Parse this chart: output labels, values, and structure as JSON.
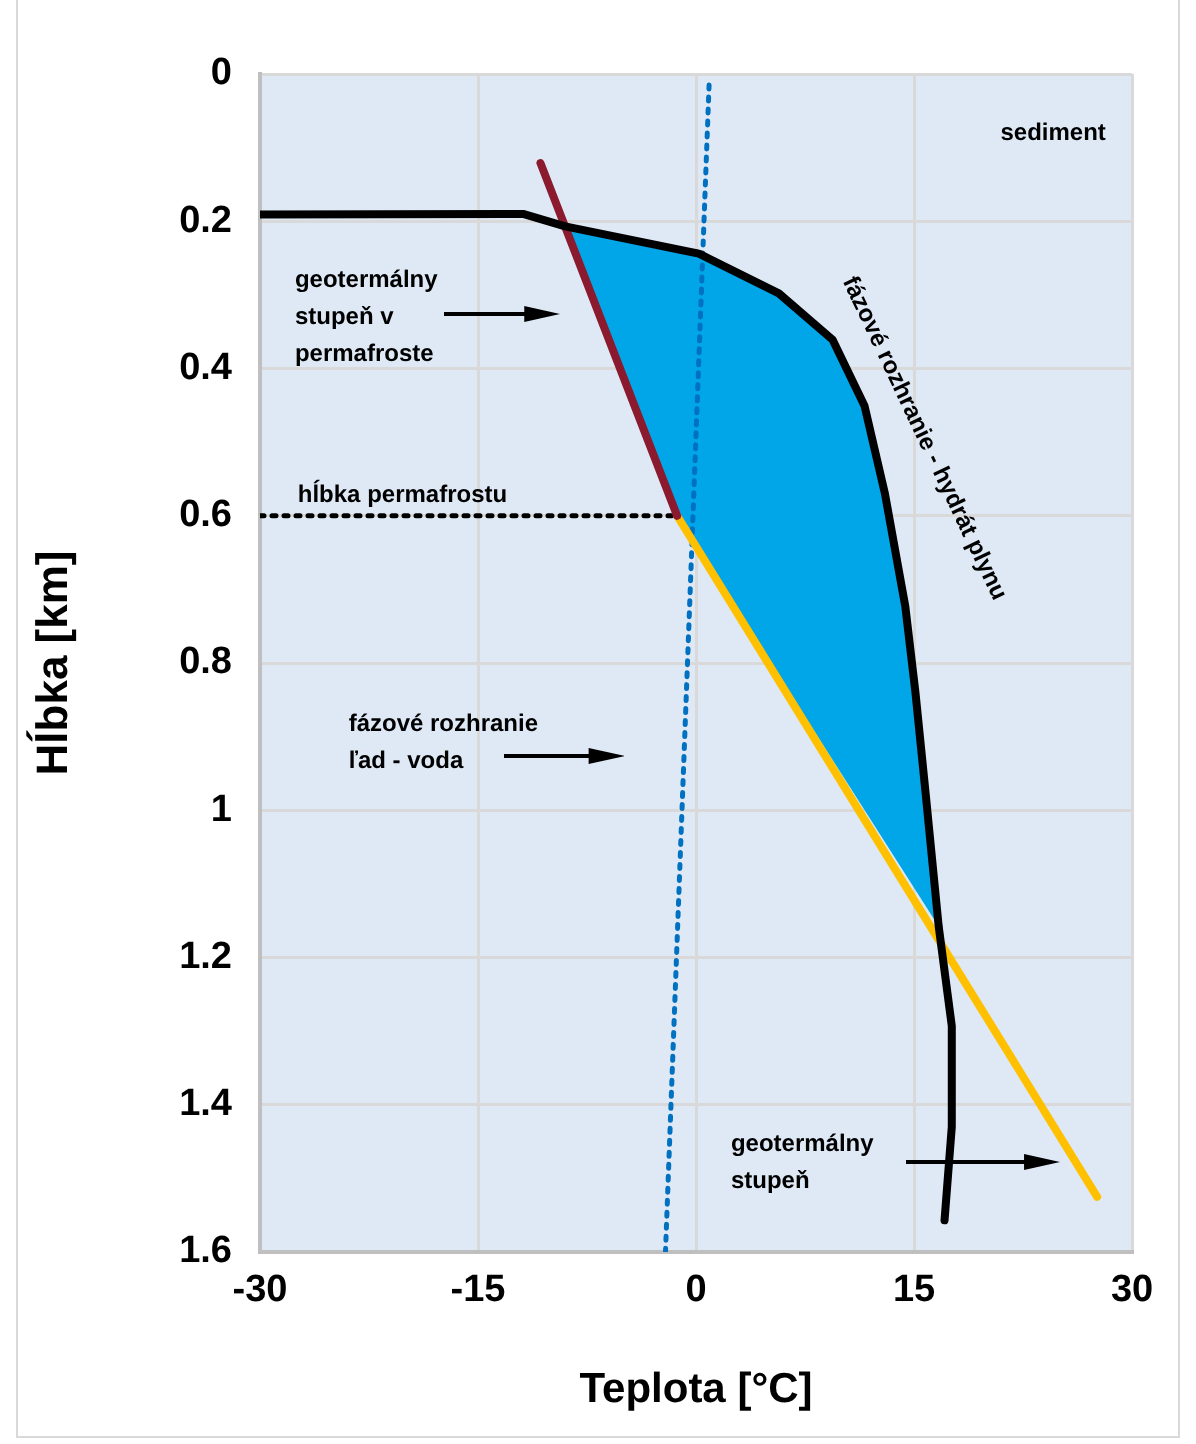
{
  "chart_data": {
    "type": "line",
    "xlabel": "Teplota [°C]",
    "ylabel": "Hĺbka [km]",
    "xlim": [
      -30,
      30
    ],
    "xticks": [
      -30,
      -15,
      0,
      15,
      30
    ],
    "ylim": [
      1.6,
      0
    ],
    "yticks": [
      0,
      {
        "value": 0.2,
        "label": "0.2"
      },
      {
        "value": 0.4,
        "label": "0.4"
      },
      {
        "value": 0.6,
        "label": "0.6"
      },
      {
        "value": 0.8,
        "label": "0.8"
      },
      1,
      {
        "value": 1.2,
        "label": "1.2"
      },
      {
        "value": 1.4,
        "label": "1.4"
      },
      {
        "value": 1.6,
        "label": "1.6"
      }
    ],
    "grid": true,
    "legend": false,
    "marker": "none",
    "series": [
      {
        "type": "area",
        "color": "#00a6e8",
        "x": [
          -9.0,
          -1.3,
          16.7,
          15.8,
          15.1,
          14.4,
          13.0,
          11.6,
          9.4,
          5.7,
          0.2,
          -9.0
        ],
        "values": [
          0.207,
          0.6,
          1.158,
          0.977,
          0.84,
          0.723,
          0.57,
          0.451,
          0.361,
          0.298,
          0.244,
          0.207
        ]
      },
      {
        "color": "#000000",
        "line_style": "solid",
        "x": [
          -30,
          -11.9,
          -9.0,
          0.2,
          5.7,
          9.4,
          11.6,
          13.0,
          14.4,
          15.1,
          15.8,
          16.7,
          17.6,
          17.6,
          17.1
        ],
        "values": [
          0.191,
          0.19,
          0.207,
          0.244,
          0.298,
          0.361,
          0.451,
          0.57,
          0.723,
          0.84,
          0.977,
          1.158,
          1.293,
          1.43,
          1.557
        ]
      },
      {
        "color": "#8b1a2e",
        "line_style": "solid",
        "x": [
          -10.7,
          -1.3
        ],
        "values": [
          0.121,
          0.6
        ]
      },
      {
        "color": "#ffc000",
        "line_style": "solid",
        "x": [
          -1.3,
          27.6
        ],
        "values": [
          0.6,
          1.525
        ]
      },
      {
        "color": "#0070c0",
        "line_style": "dotted",
        "x": [
          0.9,
          -2.1
        ],
        "values": [
          0.015,
          1.6
        ]
      },
      {
        "color": "#000000",
        "line_style": "dotted",
        "x": [
          -30,
          -1.3
        ],
        "values": [
          0.6,
          0.6
        ]
      }
    ],
    "annotations": [
      "sediment",
      "geotermálny\nstupeň v\npermafroste",
      "hĺbka permafrostu",
      "fázové rozhranie - hydrát plynu",
      "fázové rozhranie\nľad - voda",
      "geotermálny\nstupeň"
    ]
  }
}
